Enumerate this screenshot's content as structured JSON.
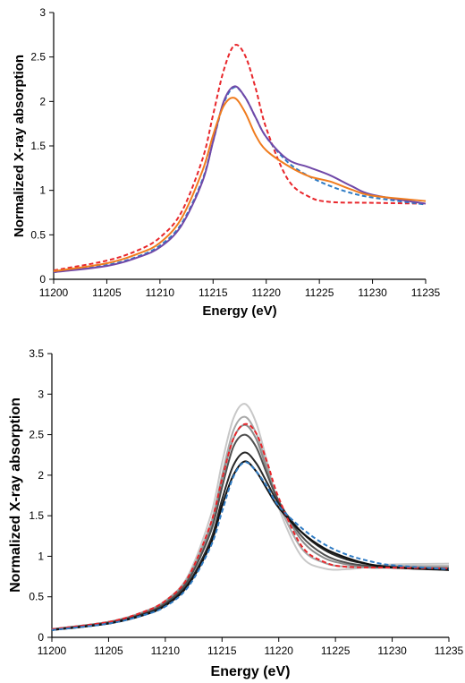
{
  "chart_data": [
    {
      "type": "line",
      "xlabel": "Energy (eV)",
      "ylabel": "Normalized X-ray absorption",
      "xlim": [
        11200,
        11235
      ],
      "ylim": [
        0,
        3
      ],
      "xticks": [
        "11200",
        "11205",
        "11210",
        "11215",
        "11220",
        "11225",
        "11230",
        "11235"
      ],
      "yticks": [
        "0",
        "0.5",
        "1",
        "1.5",
        "2",
        "2.5",
        "3"
      ],
      "grid": false,
      "series": [
        {
          "color": "#e8262b",
          "dash": true,
          "x": [
            11200,
            11205,
            11208,
            11210,
            11212,
            11214,
            11215,
            11216,
            11217,
            11218,
            11219,
            11220,
            11222,
            11224,
            11226,
            11230,
            11235
          ],
          "y": [
            0.1,
            0.21,
            0.33,
            0.47,
            0.75,
            1.35,
            1.85,
            2.35,
            2.63,
            2.52,
            2.15,
            1.7,
            1.13,
            0.93,
            0.87,
            0.86,
            0.85
          ]
        },
        {
          "color": "#2e7bc4",
          "dash": true,
          "x": [
            11200,
            11205,
            11208,
            11210,
            11212,
            11214,
            11215,
            11216,
            11217,
            11218,
            11219,
            11220,
            11222,
            11224,
            11226,
            11228,
            11230,
            11235
          ],
          "y": [
            0.08,
            0.16,
            0.26,
            0.38,
            0.62,
            1.12,
            1.55,
            1.98,
            2.16,
            2.05,
            1.82,
            1.6,
            1.32,
            1.16,
            1.05,
            0.97,
            0.92,
            0.84
          ]
        },
        {
          "color": "#7048a8",
          "dash": false,
          "x": [
            11200,
            11205,
            11208,
            11210,
            11212,
            11214,
            11215,
            11216,
            11217,
            11218,
            11219,
            11220,
            11222,
            11224,
            11226,
            11228,
            11230,
            11235
          ],
          "y": [
            0.08,
            0.15,
            0.25,
            0.36,
            0.6,
            1.1,
            1.55,
            2.0,
            2.17,
            2.05,
            1.82,
            1.6,
            1.35,
            1.26,
            1.17,
            1.05,
            0.95,
            0.85
          ]
        },
        {
          "color": "#f07c1e",
          "dash": false,
          "x": [
            11200,
            11205,
            11208,
            11210,
            11212,
            11214,
            11215,
            11216,
            11217,
            11218,
            11219,
            11220,
            11222,
            11224,
            11226,
            11228,
            11230,
            11235
          ],
          "y": [
            0.09,
            0.18,
            0.29,
            0.41,
            0.68,
            1.22,
            1.62,
            1.95,
            2.04,
            1.88,
            1.62,
            1.45,
            1.28,
            1.16,
            1.1,
            1.01,
            0.94,
            0.88
          ]
        }
      ]
    },
    {
      "type": "line",
      "xlabel": "Energy (eV)",
      "ylabel": "Normalized X-ray absorption",
      "xlim": [
        11200,
        11235
      ],
      "ylim": [
        0,
        3.5
      ],
      "xticks": [
        "11200",
        "11205",
        "11210",
        "11215",
        "11220",
        "11225",
        "11230",
        "11235"
      ],
      "yticks": [
        "0",
        "0.5",
        "1",
        "1.5",
        "2",
        "2.5",
        "3",
        "3.5"
      ],
      "grid": false,
      "series": [
        {
          "color": "#c8c8c8",
          "dash": false,
          "x": [
            11200,
            11205,
            11208,
            11210,
            11212,
            11214,
            11215,
            11216,
            11217,
            11218,
            11219,
            11220,
            11222,
            11224,
            11226,
            11228,
            11230,
            11235
          ],
          "y": [
            0.1,
            0.19,
            0.31,
            0.45,
            0.76,
            1.5,
            2.15,
            2.7,
            2.88,
            2.65,
            2.15,
            1.6,
            1.0,
            0.85,
            0.84,
            0.87,
            0.9,
            0.91
          ]
        },
        {
          "color": "#a8a8a8",
          "dash": false,
          "x": [
            11200,
            11205,
            11208,
            11210,
            11212,
            11214,
            11215,
            11216,
            11217,
            11218,
            11219,
            11220,
            11222,
            11224,
            11226,
            11228,
            11230,
            11235
          ],
          "y": [
            0.1,
            0.19,
            0.31,
            0.45,
            0.74,
            1.4,
            2.0,
            2.55,
            2.72,
            2.52,
            2.1,
            1.65,
            1.1,
            0.92,
            0.87,
            0.87,
            0.88,
            0.88
          ]
        },
        {
          "color": "#8c8c8c",
          "dash": false,
          "x": [
            11200,
            11205,
            11208,
            11210,
            11212,
            11214,
            11215,
            11216,
            11217,
            11218,
            11219,
            11220,
            11222,
            11224,
            11226,
            11228,
            11230,
            11235
          ],
          "y": [
            0.1,
            0.19,
            0.3,
            0.44,
            0.72,
            1.35,
            1.95,
            2.45,
            2.62,
            2.45,
            2.05,
            1.68,
            1.2,
            0.98,
            0.9,
            0.86,
            0.86,
            0.86
          ]
        },
        {
          "color": "#505050",
          "dash": false,
          "x": [
            11200,
            11205,
            11208,
            11210,
            11212,
            11214,
            11215,
            11216,
            11217,
            11218,
            11219,
            11220,
            11222,
            11224,
            11226,
            11228,
            11230,
            11235
          ],
          "y": [
            0.1,
            0.18,
            0.29,
            0.42,
            0.7,
            1.3,
            1.85,
            2.35,
            2.5,
            2.35,
            2.0,
            1.68,
            1.25,
            1.02,
            0.92,
            0.88,
            0.86,
            0.85
          ]
        },
        {
          "color": "#282828",
          "dash": false,
          "x": [
            11200,
            11205,
            11208,
            11210,
            11212,
            11214,
            11215,
            11216,
            11217,
            11218,
            11219,
            11220,
            11222,
            11224,
            11226,
            11228,
            11230,
            11235
          ],
          "y": [
            0.09,
            0.18,
            0.28,
            0.4,
            0.66,
            1.2,
            1.7,
            2.12,
            2.28,
            2.15,
            1.9,
            1.65,
            1.3,
            1.08,
            0.96,
            0.9,
            0.87,
            0.84
          ]
        },
        {
          "color": "#101010",
          "dash": false,
          "x": [
            11200,
            11205,
            11208,
            11210,
            11212,
            11214,
            11215,
            11216,
            11217,
            11218,
            11219,
            11220,
            11222,
            11224,
            11226,
            11228,
            11230,
            11235
          ],
          "y": [
            0.09,
            0.17,
            0.27,
            0.39,
            0.64,
            1.15,
            1.62,
            2.0,
            2.17,
            2.05,
            1.82,
            1.6,
            1.3,
            1.1,
            0.98,
            0.9,
            0.86,
            0.83
          ]
        },
        {
          "color": "#e8262b",
          "dash": true,
          "x": [
            11200,
            11205,
            11208,
            11210,
            11212,
            11214,
            11215,
            11216,
            11217,
            11218,
            11219,
            11220,
            11222,
            11224,
            11226,
            11230,
            11235
          ],
          "y": [
            0.1,
            0.19,
            0.31,
            0.45,
            0.74,
            1.4,
            1.95,
            2.45,
            2.63,
            2.52,
            2.15,
            1.72,
            1.13,
            0.93,
            0.87,
            0.86,
            0.85
          ]
        },
        {
          "color": "#2e7bc4",
          "dash": true,
          "x": [
            11200,
            11205,
            11208,
            11210,
            11212,
            11214,
            11215,
            11216,
            11217,
            11218,
            11219,
            11220,
            11222,
            11224,
            11226,
            11228,
            11230,
            11235
          ],
          "y": [
            0.09,
            0.17,
            0.27,
            0.38,
            0.62,
            1.12,
            1.55,
            1.98,
            2.16,
            2.05,
            1.85,
            1.62,
            1.35,
            1.15,
            1.02,
            0.94,
            0.89,
            0.84
          ]
        }
      ]
    }
  ]
}
